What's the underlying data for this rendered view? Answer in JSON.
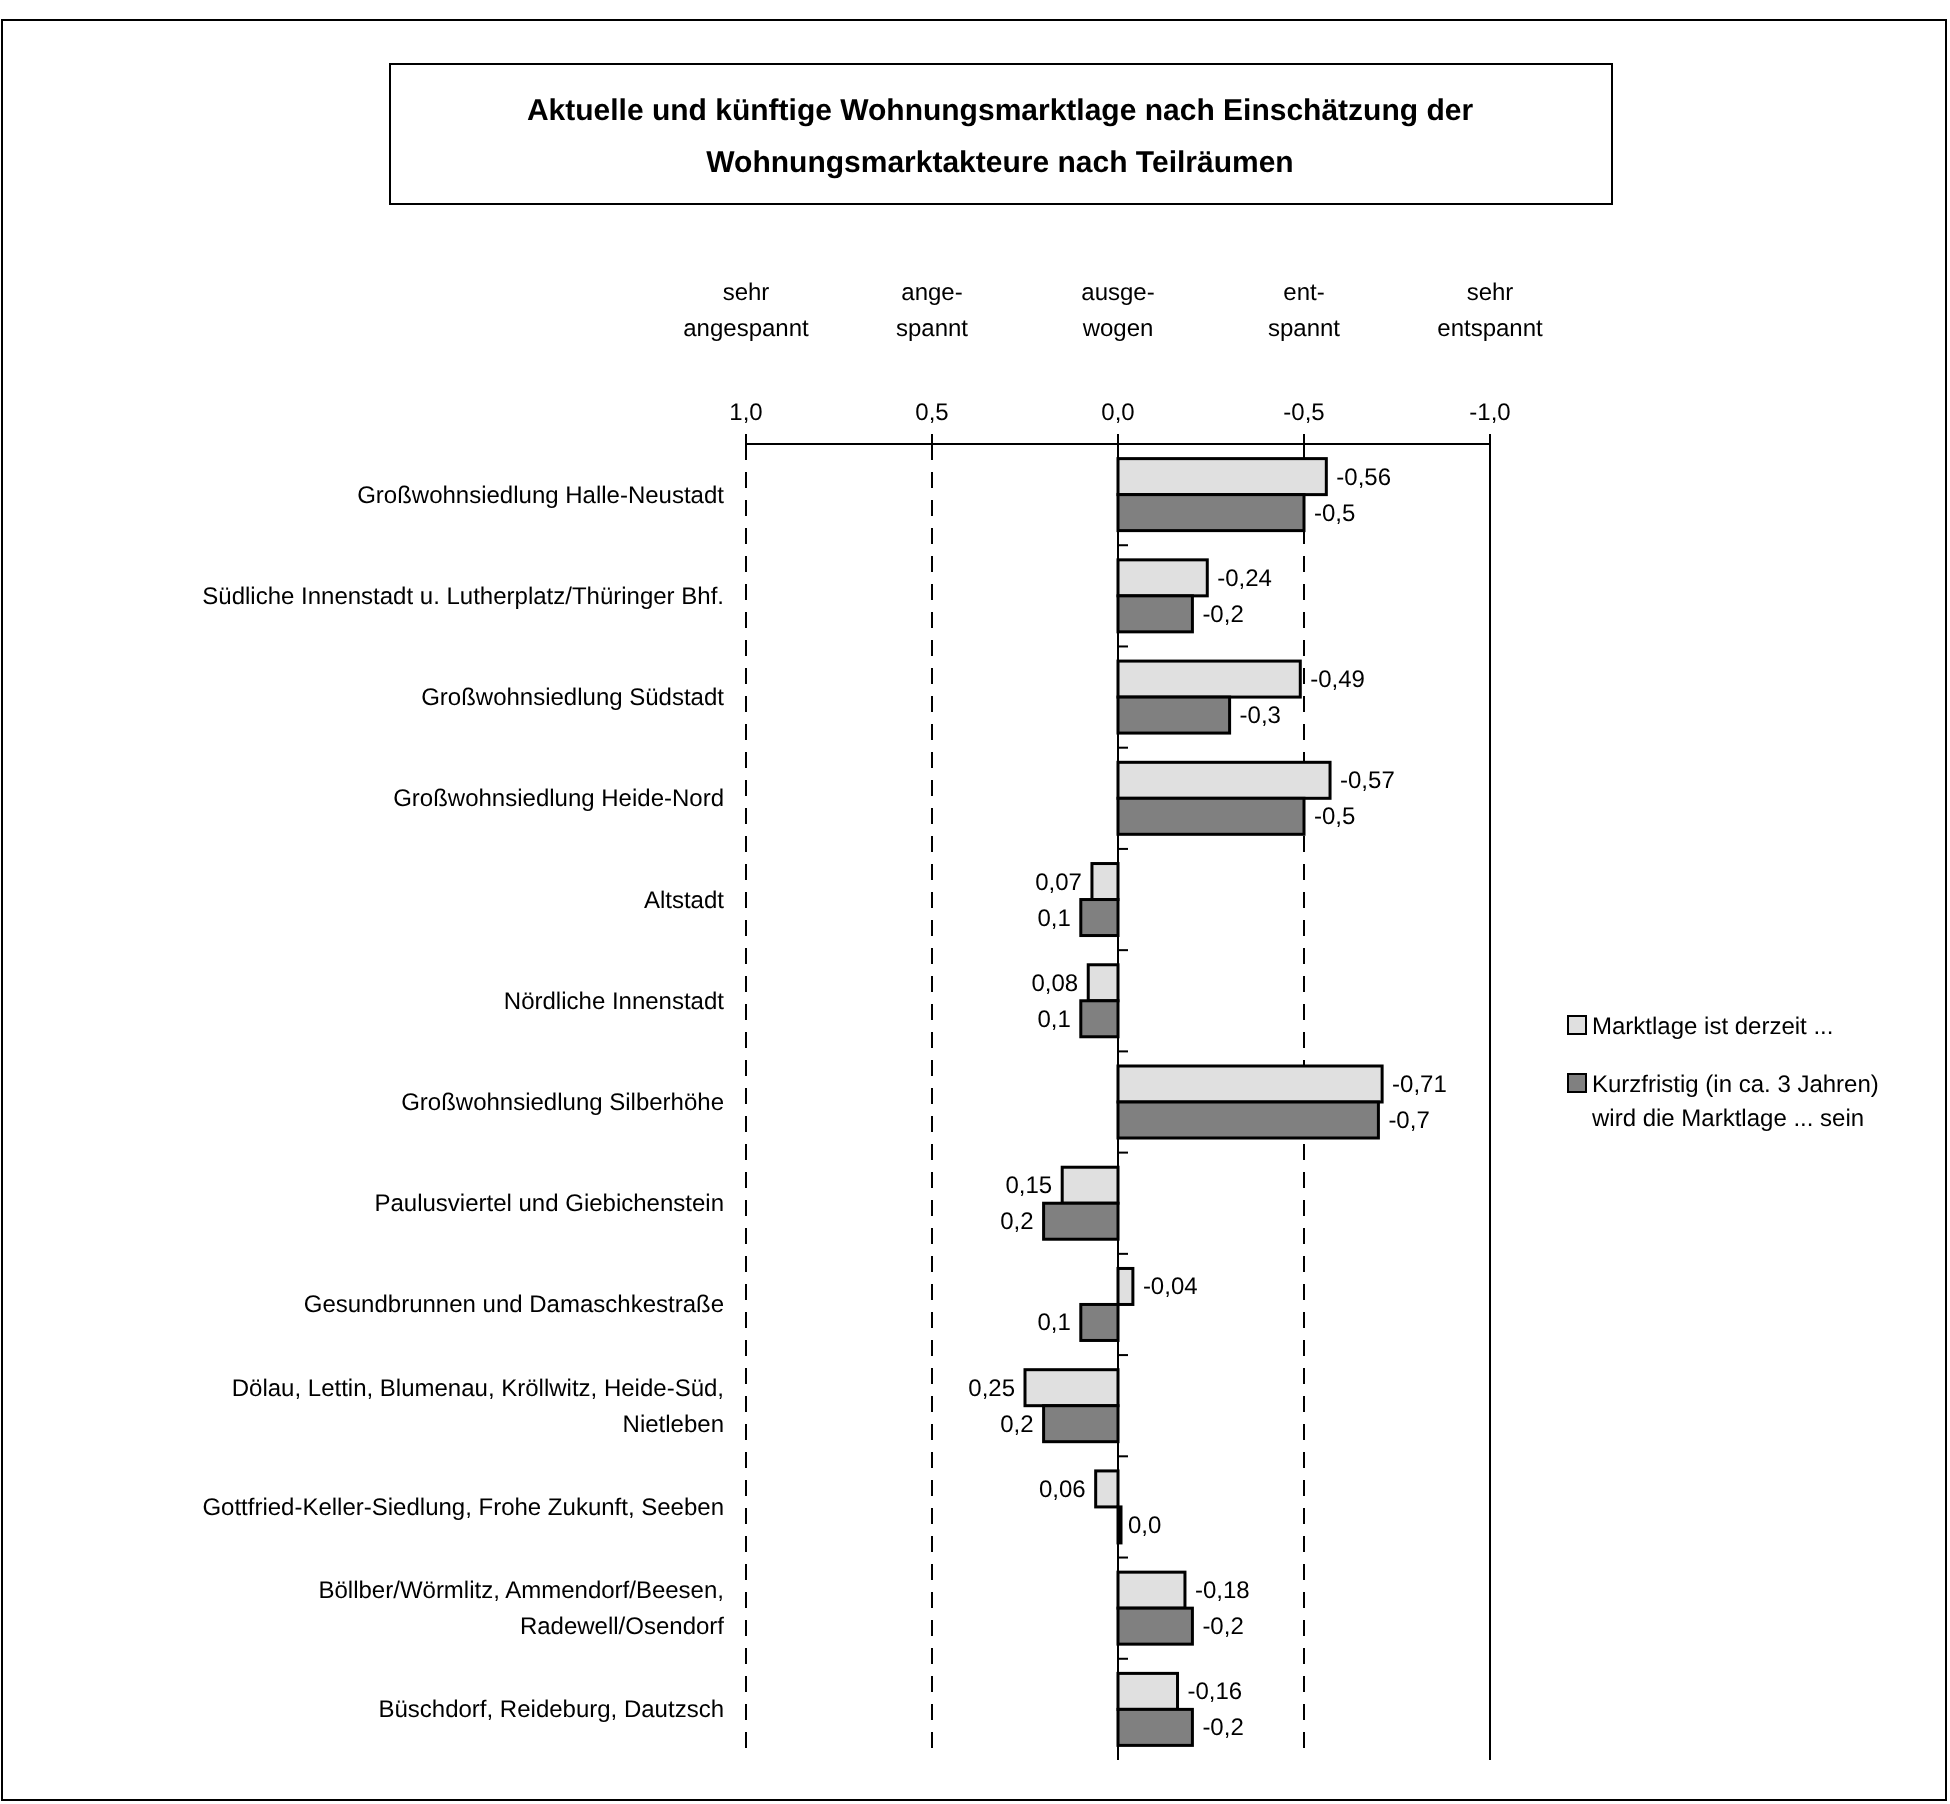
{
  "chart_data": {
    "type": "bar",
    "orientation": "horizontal",
    "title": "Aktuelle und künftige Wohnungsmarktlage nach Einschätzung der Wohnungsmarktakteure nach Teilräumen",
    "categories": [
      "Großwohnsiedlung Halle-Neustadt",
      "Südliche Innenstadt u. Lutherplatz/Thüringer Bhf.",
      "Großwohnsiedlung Südstadt",
      "Großwohnsiedlung Heide-Nord",
      "Altstadt",
      "Nördliche Innenstadt",
      "Großwohnsiedlung Silberhöhe",
      "Paulusviertel und Giebichenstein",
      "Gesundbrunnen und Damaschkestraße",
      "Dölau, Lettin, Blumenau, Kröllwitz, Heide-Süd, Nietleben",
      "Gottfried-Keller-Siedlung, Frohe Zukunft, Seeben",
      "Böllber/Wörmlitz, Ammendorf/Beesen, Radewell/Osendorf",
      "Büschdorf, Reideburg, Dautzsch"
    ],
    "series": [
      {
        "name": "Marktlage ist derzeit ...",
        "color": "#e0e0e0",
        "values": [
          -0.56,
          -0.24,
          -0.49,
          -0.57,
          0.07,
          0.08,
          -0.71,
          0.15,
          -0.04,
          0.25,
          0.06,
          -0.18,
          -0.16
        ],
        "value_labels": [
          "-0,56",
          "-0,24",
          "-0,49",
          "-0,57",
          "0,07",
          "0,08",
          "-0,71",
          "0,15",
          "-0,04",
          "0,25",
          "0,06",
          "-0,18",
          "-0,16"
        ]
      },
      {
        "name": "Kurzfristig (in ca. 3 Jahren) wird die Marktlage ... sein",
        "color": "#808080",
        "values": [
          -0.5,
          -0.2,
          -0.3,
          -0.5,
          0.1,
          0.1,
          -0.7,
          0.2,
          0.1,
          0.2,
          0.0,
          -0.2,
          -0.2
        ],
        "value_labels": [
          "-0,5",
          "-0,2",
          "-0,3",
          "-0,5",
          "0,1",
          "0,1",
          "-0,7",
          "0,2",
          "0,1",
          "0,2",
          "0,0",
          "-0,2",
          "-0,2"
        ]
      }
    ],
    "xlim": [
      1,
      -1
    ],
    "xticks": [
      {
        "value": 1,
        "label": "1,0"
      },
      {
        "value": 0.5,
        "label": "0,5"
      },
      {
        "value": 0,
        "label": "0,0"
      },
      {
        "value": -0.5,
        "label": "-0,5"
      },
      {
        "value": -1,
        "label": "-1,0"
      }
    ],
    "annotations": [
      "sehr\nangespannt",
      "ange-\nspannt",
      "ausge-\nwogen",
      "ent-\nspannt",
      "sehr\nentspannt"
    ],
    "grid": "x",
    "legend": "right"
  }
}
